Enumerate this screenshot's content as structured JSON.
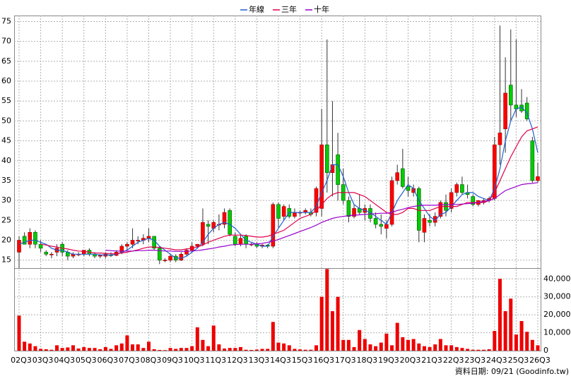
{
  "chart_data": {
    "type": "candlestick",
    "categories": [
      "02Q3",
      null,
      null,
      null,
      "03Q3",
      null,
      null,
      null,
      "04Q3",
      null,
      null,
      null,
      "05Q3",
      null,
      null,
      null,
      "06Q3",
      null,
      null,
      null,
      "07Q3",
      null,
      null,
      null,
      "08Q3",
      null,
      null,
      null,
      "09Q3",
      null,
      null,
      null,
      "10Q3",
      null,
      null,
      null,
      "11Q3",
      null,
      null,
      null,
      "12Q3",
      null,
      null,
      null,
      "13Q3",
      null,
      null,
      null,
      "14Q3",
      null,
      null,
      null,
      "15Q3",
      null,
      null,
      null,
      "16Q3",
      null,
      null,
      null,
      "17Q3",
      null,
      null,
      null,
      "18Q3",
      null,
      null,
      null,
      "19Q3",
      null,
      null,
      null,
      "20Q3",
      null,
      null,
      null,
      "21Q3",
      null,
      null,
      null,
      "22Q3",
      null,
      null,
      null,
      "23Q3",
      null,
      null,
      null,
      "24Q3",
      null,
      null,
      null,
      "25Q3",
      null,
      null,
      null,
      "26Q3"
    ],
    "open": [
      17,
      21,
      19,
      22,
      19,
      17,
      16.5,
      17,
      19,
      17,
      16,
      16.5,
      16.5,
      17.5,
      16.5,
      16,
      16,
      16.3,
      16.2,
      17,
      18.5,
      19,
      20,
      20,
      20.5,
      21,
      18,
      15,
      15,
      16,
      15,
      16.5,
      17.5,
      18.5,
      19,
      24,
      23,
      24,
      24,
      27.5,
      21,
      19,
      21,
      19,
      19,
      18.5,
      18.8,
      18.5,
      29,
      26,
      28,
      26,
      27,
      27,
      27,
      27,
      28,
      44,
      37,
      41.5,
      34,
      30,
      26,
      28,
      27,
      28,
      25.5,
      24,
      23,
      24,
      35,
      38,
      33.5,
      32,
      33,
      22,
      25,
      24.5,
      26,
      29.5,
      28,
      32,
      34,
      32,
      31,
      29,
      29.5,
      30,
      30.5,
      44,
      48,
      59,
      54,
      54,
      54.5,
      45,
      35
    ],
    "high": [
      21,
      22,
      23,
      22.5,
      20,
      17.5,
      17,
      19,
      19.5,
      17.5,
      17,
      17,
      17.5,
      18,
      17,
      16.5,
      17,
      17,
      17.5,
      19,
      19.5,
      23,
      21,
      21.5,
      23,
      21,
      18.5,
      15.5,
      16.5,
      16.5,
      17,
      18,
      19.5,
      19,
      28,
      25,
      25,
      26.5,
      28,
      28,
      22,
      21.5,
      21.5,
      19.5,
      19.5,
      19,
      19,
      29.5,
      29.5,
      29,
      29,
      28,
      27.5,
      28,
      28,
      33.5,
      53,
      70.5,
      55,
      47,
      38,
      31,
      29,
      31.5,
      29,
      29,
      27,
      26.5,
      25,
      36,
      39,
      43,
      36,
      34,
      33.5,
      26.5,
      26.5,
      27,
      30,
      31.5,
      33,
      34.5,
      36,
      34,
      31.5,
      30,
      30.5,
      31,
      46,
      74,
      66,
      73,
      70.5,
      58,
      56,
      46,
      39.5
    ],
    "low": [
      13,
      19,
      18,
      18,
      17,
      16,
      15.5,
      16,
      16,
      15,
      15.5,
      16,
      16,
      16,
      15.5,
      15.5,
      15.5,
      15.8,
      16,
      16.5,
      17.5,
      18,
      19,
      19,
      19.5,
      17.5,
      14,
      14.5,
      14.5,
      14.5,
      14.8,
      16,
      17,
      18,
      18.5,
      19,
      22,
      22.5,
      23,
      21,
      18.5,
      18.5,
      18,
      18.5,
      18,
      18,
      18,
      18,
      23,
      25,
      25.5,
      25.5,
      26,
      26.5,
      26,
      26,
      26,
      32,
      31,
      30,
      29,
      24.5,
      25.5,
      26.5,
      25,
      24.5,
      23,
      21.5,
      20.5,
      23.5,
      34,
      33,
      31,
      31,
      19.5,
      19.5,
      23.5,
      23.5,
      25.5,
      26,
      27,
      31,
      31.5,
      30.5,
      28.5,
      28.5,
      29,
      29.5,
      30,
      39,
      42,
      50,
      51,
      52,
      50,
      34.5,
      34.5
    ],
    "close": [
      20,
      19,
      22,
      19,
      18,
      16.5,
      16.5,
      18,
      17,
      16,
      16.5,
      16.5,
      17.5,
      16.5,
      16,
      16.2,
      16.5,
      16.2,
      17,
      18.5,
      19,
      20,
      20,
      20.5,
      21,
      18,
      15,
      15,
      16,
      15,
      16.5,
      17.5,
      18.5,
      19,
      24.5,
      23.5,
      24.5,
      24,
      27,
      21.5,
      19,
      20.5,
      19,
      19,
      18.5,
      18.8,
      18.5,
      29,
      25.5,
      28.5,
      26,
      27,
      27,
      27.5,
      26.5,
      33,
      44,
      37,
      39,
      34,
      30,
      26,
      28,
      27,
      28,
      25.5,
      24,
      23.5,
      24,
      35,
      37,
      33.5,
      32.5,
      33,
      22.5,
      25.5,
      24.5,
      26,
      29.5,
      27.5,
      32,
      34,
      32,
      31.5,
      29,
      30,
      30,
      30.5,
      44,
      47,
      57,
      54,
      53,
      52.5,
      50.5,
      35,
      36
    ],
    "up_color": "#ff0000",
    "down_color": "#00cc00",
    "series": [
      {
        "name": "年線",
        "color": "#1f5fcf",
        "values": [
          19,
          19.5,
          20,
          20,
          19.5,
          19,
          18,
          17.5,
          17.5,
          17,
          16.5,
          16.5,
          16.5,
          16.5,
          16.5,
          16.3,
          16.3,
          16.3,
          16.5,
          17,
          17.5,
          18.5,
          19.5,
          20,
          20.5,
          20,
          18.5,
          17.5,
          16.5,
          15.5,
          15.5,
          16,
          17,
          18,
          19.5,
          21.5,
          23,
          24,
          24.5,
          24,
          23,
          21.5,
          20,
          19.5,
          19,
          18.5,
          18.5,
          21,
          23,
          25,
          27,
          27,
          27,
          27,
          27,
          28.5,
          32,
          35,
          39,
          39,
          36,
          32,
          29,
          28,
          27.5,
          27,
          26,
          25,
          24,
          27,
          30,
          32,
          34,
          33,
          30,
          28,
          26,
          25,
          26.5,
          27,
          28.5,
          30,
          31.5,
          32,
          32,
          31,
          30.5,
          30,
          33,
          38,
          45,
          50,
          53,
          53.5,
          52,
          48,
          42
        ]
      },
      {
        "name": "三年",
        "color": "#e0004a",
        "values": [
          null,
          null,
          null,
          null,
          19,
          18.8,
          18.5,
          18.3,
          18,
          17.8,
          17.5,
          17.3,
          17.2,
          17,
          16.8,
          16.8,
          16.7,
          16.6,
          16.6,
          16.8,
          17,
          17.3,
          17.6,
          18,
          18.3,
          18.3,
          18.2,
          18,
          17.8,
          17.6,
          17.6,
          17.8,
          18,
          18.3,
          18.8,
          19.5,
          20,
          20.5,
          21,
          21.3,
          21.3,
          21.3,
          21.2,
          21,
          20.8,
          20.8,
          21,
          21.5,
          22,
          22.5,
          23.5,
          24.5,
          25.5,
          26,
          26.5,
          27.5,
          29,
          30.5,
          31.5,
          32,
          32,
          32,
          32,
          31.5,
          31,
          30,
          29,
          28,
          27,
          26.5,
          26.5,
          27,
          28,
          28,
          27.5,
          27.5,
          27.5,
          28,
          28.5,
          28.5,
          28.5,
          28.5,
          29,
          29.5,
          29.5,
          29.5,
          29.5,
          30,
          32,
          35,
          38,
          41,
          43.5,
          46,
          47.5,
          48,
          48.5
        ]
      },
      {
        "name": "十年",
        "color": "#9900cc",
        "values": [
          null,
          null,
          null,
          null,
          null,
          null,
          null,
          null,
          null,
          null,
          null,
          null,
          null,
          null,
          null,
          null,
          17.5,
          17.4,
          17.3,
          17.3,
          17.3,
          17.3,
          17.4,
          17.4,
          17.5,
          17.5,
          17.4,
          17.3,
          17.3,
          17.2,
          17.2,
          17.2,
          17.3,
          17.4,
          17.6,
          17.8,
          18,
          18.3,
          18.5,
          18.8,
          18.9,
          19,
          19,
          19,
          19.1,
          19.2,
          19.5,
          19.8,
          20.2,
          20.7,
          21.2,
          21.7,
          22.2,
          22.7,
          23.2,
          23.8,
          24.5,
          25,
          25.5,
          25.8,
          26,
          26.2,
          26.3,
          26.4,
          26.5,
          26.6,
          26.7,
          26.8,
          26.8,
          27,
          27.5,
          27.8,
          28.2,
          28.5,
          28.7,
          28.8,
          28.8,
          28.8,
          28.9,
          29,
          29,
          29,
          29.1,
          29.2,
          29.3,
          29.5,
          29.8,
          30,
          30.5,
          31.5,
          32.5,
          33,
          33.5,
          34,
          34.2,
          34.3,
          34.5
        ]
      }
    ],
    "volume": {
      "color": "#ee0000",
      "values": [
        19500,
        5000,
        4000,
        2500,
        1000,
        800,
        500,
        3000,
        1500,
        1800,
        3000,
        1200,
        2000,
        1500,
        1500,
        800,
        2000,
        1000,
        3000,
        4000,
        8500,
        3500,
        3500,
        1500,
        5000,
        800,
        400,
        300,
        1500,
        1000,
        1500,
        1500,
        2500,
        13000,
        6000,
        2500,
        14000,
        3500,
        1200,
        1500,
        1500,
        2000,
        500,
        400,
        600,
        1000,
        1000,
        16000,
        4500,
        4000,
        3000,
        1000,
        700,
        500,
        500,
        3000,
        30000,
        45500,
        22000,
        30000,
        6000,
        6000,
        2000,
        11500,
        6500,
        3500,
        2500,
        4500,
        9500,
        3000,
        15500,
        7500,
        6000,
        6500,
        4000,
        2500,
        2000,
        3500,
        6500,
        3000,
        3000,
        2000,
        1500,
        1000,
        500,
        500,
        500,
        800,
        11000,
        40000,
        22000,
        29000,
        9000,
        16500,
        10500,
        6000,
        3000
      ]
    },
    "ylim": [
      13,
      76.5
    ],
    "yticks": [
      15,
      20,
      25,
      30,
      35,
      40,
      45,
      50,
      55,
      60,
      65,
      70,
      75
    ],
    "y2lim": [
      0,
      46000
    ],
    "y2ticks": [
      0,
      {
        "value": 10000,
        "label": "10,000"
      },
      {
        "value": 20000,
        "label": "20,000"
      },
      {
        "value": 30000,
        "label": "30,000"
      },
      {
        "value": 40000,
        "label": "40,000"
      }
    ],
    "grid": true,
    "footer": "資料日期: 09/21 (Goodinfo.tw)"
  }
}
